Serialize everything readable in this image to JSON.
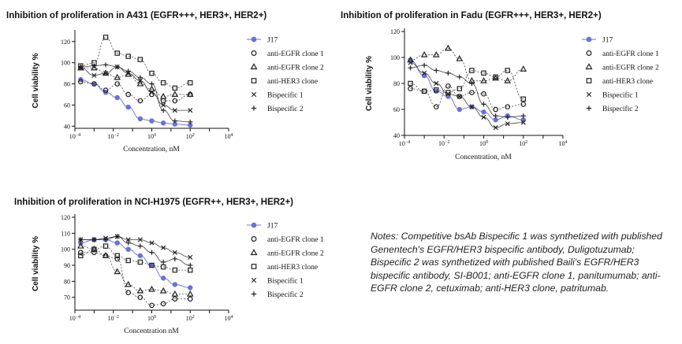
{
  "chart_data": [
    {
      "type": "scatter",
      "title": "Inhibition of  proliferation in A431 (EGFR+++, HER3+, HER2+)",
      "xlabel": "Concentration, nM",
      "ylabel": "Cell viability %",
      "xscale": "log",
      "xlim": [
        0.0001,
        10000
      ],
      "ylim": [
        38,
        128
      ],
      "yticks": [
        40,
        60,
        80,
        100,
        120
      ],
      "x": [
        0.0002,
        0.001,
        0.004,
        0.016,
        0.06,
        0.25,
        1,
        4,
        16,
        100
      ],
      "legend_position": "right",
      "series": [
        {
          "name": "J17",
          "values": [
            84,
            80,
            72,
            67,
            58,
            47,
            45,
            43,
            42,
            41
          ]
        },
        {
          "name": "anti-EGFR clone 1",
          "values": [
            82,
            80,
            74,
            80,
            70,
            64,
            70,
            64,
            64,
            70
          ]
        },
        {
          "name": "anti-EGFR clone 2",
          "values": [
            95,
            95,
            90,
            86,
            89,
            80,
            75,
            68,
            70,
            70
          ]
        },
        {
          "name": "anti-HER3 clone",
          "values": [
            97,
            100,
            124,
            109,
            106,
            103,
            90,
            81,
            76,
            81
          ]
        },
        {
          "name": "Bispecific 1",
          "values": [
            95,
            88,
            90,
            96,
            90,
            83,
            72,
            60,
            55,
            55
          ]
        },
        {
          "name": "Bispecific 2",
          "values": [
            96,
            97,
            98,
            96,
            92,
            86,
            80,
            55,
            45,
            44
          ]
        }
      ]
    },
    {
      "type": "scatter",
      "title": "Inhibition of  proliferation in Fadu (EGFR+++, HER3+, HER2+)",
      "xlabel": "Concentration, nM",
      "ylabel": "Cell viability %",
      "xscale": "log",
      "xlim": [
        0.0001,
        10000
      ],
      "ylim": [
        40,
        120
      ],
      "yticks": [
        40,
        60,
        80,
        100,
        120
      ],
      "x": [
        0.0002,
        0.001,
        0.004,
        0.016,
        0.06,
        0.25,
        1,
        4,
        16,
        100
      ],
      "legend_position": "right",
      "series": [
        {
          "name": "J17",
          "values": [
            98,
            86,
            74,
            70,
            60,
            62,
            58,
            52,
            55,
            52
          ]
        },
        {
          "name": "anti-EGFR clone 1",
          "values": [
            76,
            74,
            62,
            78,
            70,
            73,
            72,
            60,
            62,
            64
          ]
        },
        {
          "name": "anti-EGFR clone 2",
          "values": [
            98,
            102,
            102,
            107,
            99,
            82,
            82,
            84,
            82,
            91
          ]
        },
        {
          "name": "anti-HER3 clone",
          "values": [
            80,
            74,
            75,
            73,
            76,
            90,
            88,
            85,
            90,
            68
          ]
        },
        {
          "name": "Bispecific 1",
          "values": [
            96,
            88,
            80,
            72,
            70,
            62,
            54,
            46,
            49,
            50
          ]
        },
        {
          "name": "Bispecific 2",
          "values": [
            92,
            94,
            90,
            88,
            85,
            80,
            64,
            55,
            54,
            55
          ]
        }
      ]
    },
    {
      "type": "scatter",
      "title": "Inhibition of  proliferation in NCI-H1975 (EGFR++, HER3+, HER2+)",
      "xlabel": "Concentration  nM",
      "ylabel": "Cell viability %",
      "xscale": "log",
      "xlim": [
        0.0001,
        10000
      ],
      "ylim": [
        62,
        120
      ],
      "yticks": [
        70,
        80,
        90,
        100,
        110,
        120
      ],
      "x": [
        0.0002,
        0.001,
        0.004,
        0.016,
        0.06,
        0.25,
        1,
        4,
        16,
        100
      ],
      "legend_position": "right",
      "series": [
        {
          "name": "J17",
          "values": [
            104,
            106,
            106,
            104,
            100,
            96,
            90,
            82,
            78,
            76
          ]
        },
        {
          "name": "anti-EGFR clone 1",
          "values": [
            98,
            98,
            96,
            94,
            73,
            70,
            65,
            66,
            69,
            69
          ]
        },
        {
          "name": "anti-EGFR clone 2",
          "values": [
            102,
            100,
            96,
            86,
            78,
            74,
            75,
            74,
            72,
            72
          ]
        },
        {
          "name": "anti-HER3 clone",
          "values": [
            96,
            100,
            102,
            96,
            93,
            92,
            90,
            89,
            87,
            87
          ]
        },
        {
          "name": "Bispecific 1",
          "values": [
            106,
            106,
            107,
            108,
            106,
            106,
            104,
            101,
            98,
            95
          ]
        },
        {
          "name": "Bispecific 2",
          "values": [
            106,
            106,
            106,
            108,
            104,
            102,
            98,
            92,
            94,
            90
          ]
        }
      ]
    }
  ],
  "legend_markers": [
    "filled-circle",
    "open-circle",
    "open-triangle",
    "open-square",
    "x-cross",
    "plus"
  ],
  "series_colors": {
    "J17": "#6b72d6",
    "other": "#222222"
  },
  "x_tick_exponents": [
    "-4",
    "-2",
    "0",
    "2",
    "4"
  ],
  "notes": "Notes: Competitive bsAb  Bispecific 1 was synthetized with published Genentech's EGFR/HER3 bispecific antibody, Duligotuzumab; Bispecific 2 was synthetized with published Baili's EGFR/HER3 bispecific antibody, SI-B001; anti-EGFR clone 1, panitumumab; anti-EGFR clone 2, cetuximab; anti-HER3 clone, patritumab."
}
